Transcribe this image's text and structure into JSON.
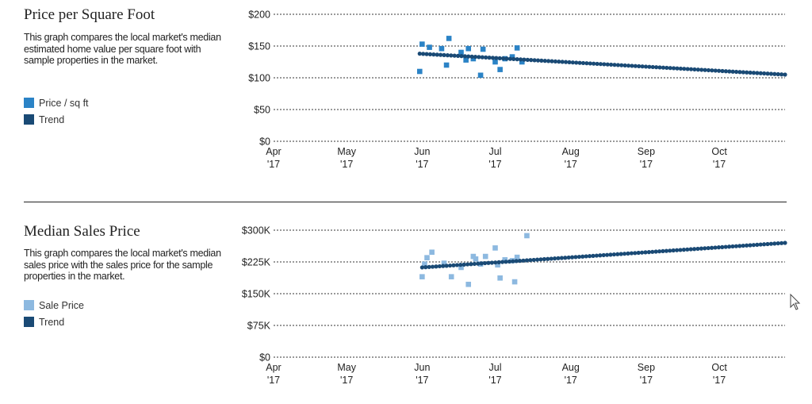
{
  "panels": [
    {
      "title": "Price per Square Foot",
      "description": "This graph compares the local market's median estimated home value per square foot with sample properties in the market.",
      "legend": [
        {
          "label": "Price / sq ft",
          "color": "#2b83c6"
        },
        {
          "label": "Trend",
          "color": "#1a4a75"
        }
      ]
    },
    {
      "title": "Median Sales Price",
      "description": "This graph compares the local market's median sales price with the sales price for the sample properties in the market.",
      "legend": [
        {
          "label": "Sale Price",
          "color": "#8db9e0"
        },
        {
          "label": "Trend",
          "color": "#1a4a75"
        }
      ]
    }
  ],
  "chart_data": [
    {
      "type": "scatter",
      "x_ticks": [
        {
          "month": "Apr",
          "year": "'17",
          "date": "2017-04-01"
        },
        {
          "month": "May",
          "year": "'17",
          "date": "2017-05-01"
        },
        {
          "month": "Jun",
          "year": "'17",
          "date": "2017-06-01"
        },
        {
          "month": "Jul",
          "year": "'17",
          "date": "2017-07-01"
        },
        {
          "month": "Aug",
          "year": "'17",
          "date": "2017-08-01"
        },
        {
          "month": "Sep",
          "year": "'17",
          "date": "2017-09-01"
        },
        {
          "month": "Oct",
          "year": "'17",
          "date": "2017-10-01"
        }
      ],
      "y_ticks": [
        "$0",
        "$50",
        "$100",
        "$150",
        "$200"
      ],
      "ylim": [
        0,
        200
      ],
      "xlim": [
        "2017-04-01",
        "2017-10-28"
      ],
      "grid": true,
      "series": [
        {
          "name": "Price / sq ft",
          "color": "#2b83c6",
          "marker": "square",
          "points": [
            {
              "x": "2017-05-31",
              "y": 110
            },
            {
              "x": "2017-06-01",
              "y": 153
            },
            {
              "x": "2017-06-04",
              "y": 148
            },
            {
              "x": "2017-06-09",
              "y": 146
            },
            {
              "x": "2017-06-11",
              "y": 120
            },
            {
              "x": "2017-06-12",
              "y": 162
            },
            {
              "x": "2017-06-17",
              "y": 140
            },
            {
              "x": "2017-06-19",
              "y": 128
            },
            {
              "x": "2017-06-20",
              "y": 146
            },
            {
              "x": "2017-06-22",
              "y": 130
            },
            {
              "x": "2017-06-25",
              "y": 104
            },
            {
              "x": "2017-06-26",
              "y": 145
            },
            {
              "x": "2017-07-01",
              "y": 125
            },
            {
              "x": "2017-07-03",
              "y": 113
            },
            {
              "x": "2017-07-05",
              "y": 130
            },
            {
              "x": "2017-07-08",
              "y": 133
            },
            {
              "x": "2017-07-10",
              "y": 147
            },
            {
              "x": "2017-07-12",
              "y": 125
            }
          ]
        },
        {
          "name": "Trend",
          "color": "#1a4a75",
          "marker": "dot",
          "start": {
            "x": "2017-05-31",
            "y": 138
          },
          "end": {
            "x": "2017-10-28",
            "y": 105
          }
        }
      ]
    },
    {
      "type": "scatter",
      "x_ticks": [
        {
          "month": "Apr",
          "year": "'17",
          "date": "2017-04-01"
        },
        {
          "month": "May",
          "year": "'17",
          "date": "2017-05-01"
        },
        {
          "month": "Jun",
          "year": "'17",
          "date": "2017-06-01"
        },
        {
          "month": "Jul",
          "year": "'17",
          "date": "2017-07-01"
        },
        {
          "month": "Aug",
          "year": "'17",
          "date": "2017-08-01"
        },
        {
          "month": "Sep",
          "year": "'17",
          "date": "2017-09-01"
        },
        {
          "month": "Oct",
          "year": "'17",
          "date": "2017-10-01"
        }
      ],
      "y_ticks": [
        "$0",
        "$75K",
        "$150K",
        "$225K",
        "$300K"
      ],
      "ylim": [
        0,
        300000
      ],
      "xlim": [
        "2017-04-01",
        "2017-10-28"
      ],
      "grid": true,
      "series": [
        {
          "name": "Sale Price",
          "color": "#8db9e0",
          "marker": "square",
          "points": [
            {
              "x": "2017-06-01",
              "y": 190000
            },
            {
              "x": "2017-06-02",
              "y": 220000
            },
            {
              "x": "2017-06-03",
              "y": 235000
            },
            {
              "x": "2017-06-05",
              "y": 248000
            },
            {
              "x": "2017-06-10",
              "y": 222000
            },
            {
              "x": "2017-06-13",
              "y": 190000
            },
            {
              "x": "2017-06-17",
              "y": 212000
            },
            {
              "x": "2017-06-20",
              "y": 172000
            },
            {
              "x": "2017-06-22",
              "y": 238000
            },
            {
              "x": "2017-06-23",
              "y": 232000
            },
            {
              "x": "2017-06-25",
              "y": 220000
            },
            {
              "x": "2017-06-27",
              "y": 238000
            },
            {
              "x": "2017-07-01",
              "y": 258000
            },
            {
              "x": "2017-07-02",
              "y": 218000
            },
            {
              "x": "2017-07-03",
              "y": 187000
            },
            {
              "x": "2017-07-05",
              "y": 230000
            },
            {
              "x": "2017-07-08",
              "y": 228000
            },
            {
              "x": "2017-07-09",
              "y": 178000
            },
            {
              "x": "2017-07-10",
              "y": 236000
            },
            {
              "x": "2017-07-14",
              "y": 287000
            }
          ]
        },
        {
          "name": "Trend",
          "color": "#1a4a75",
          "marker": "dot",
          "start": {
            "x": "2017-06-01",
            "y": 212000
          },
          "end": {
            "x": "2017-10-28",
            "y": 270000
          }
        }
      ]
    }
  ]
}
